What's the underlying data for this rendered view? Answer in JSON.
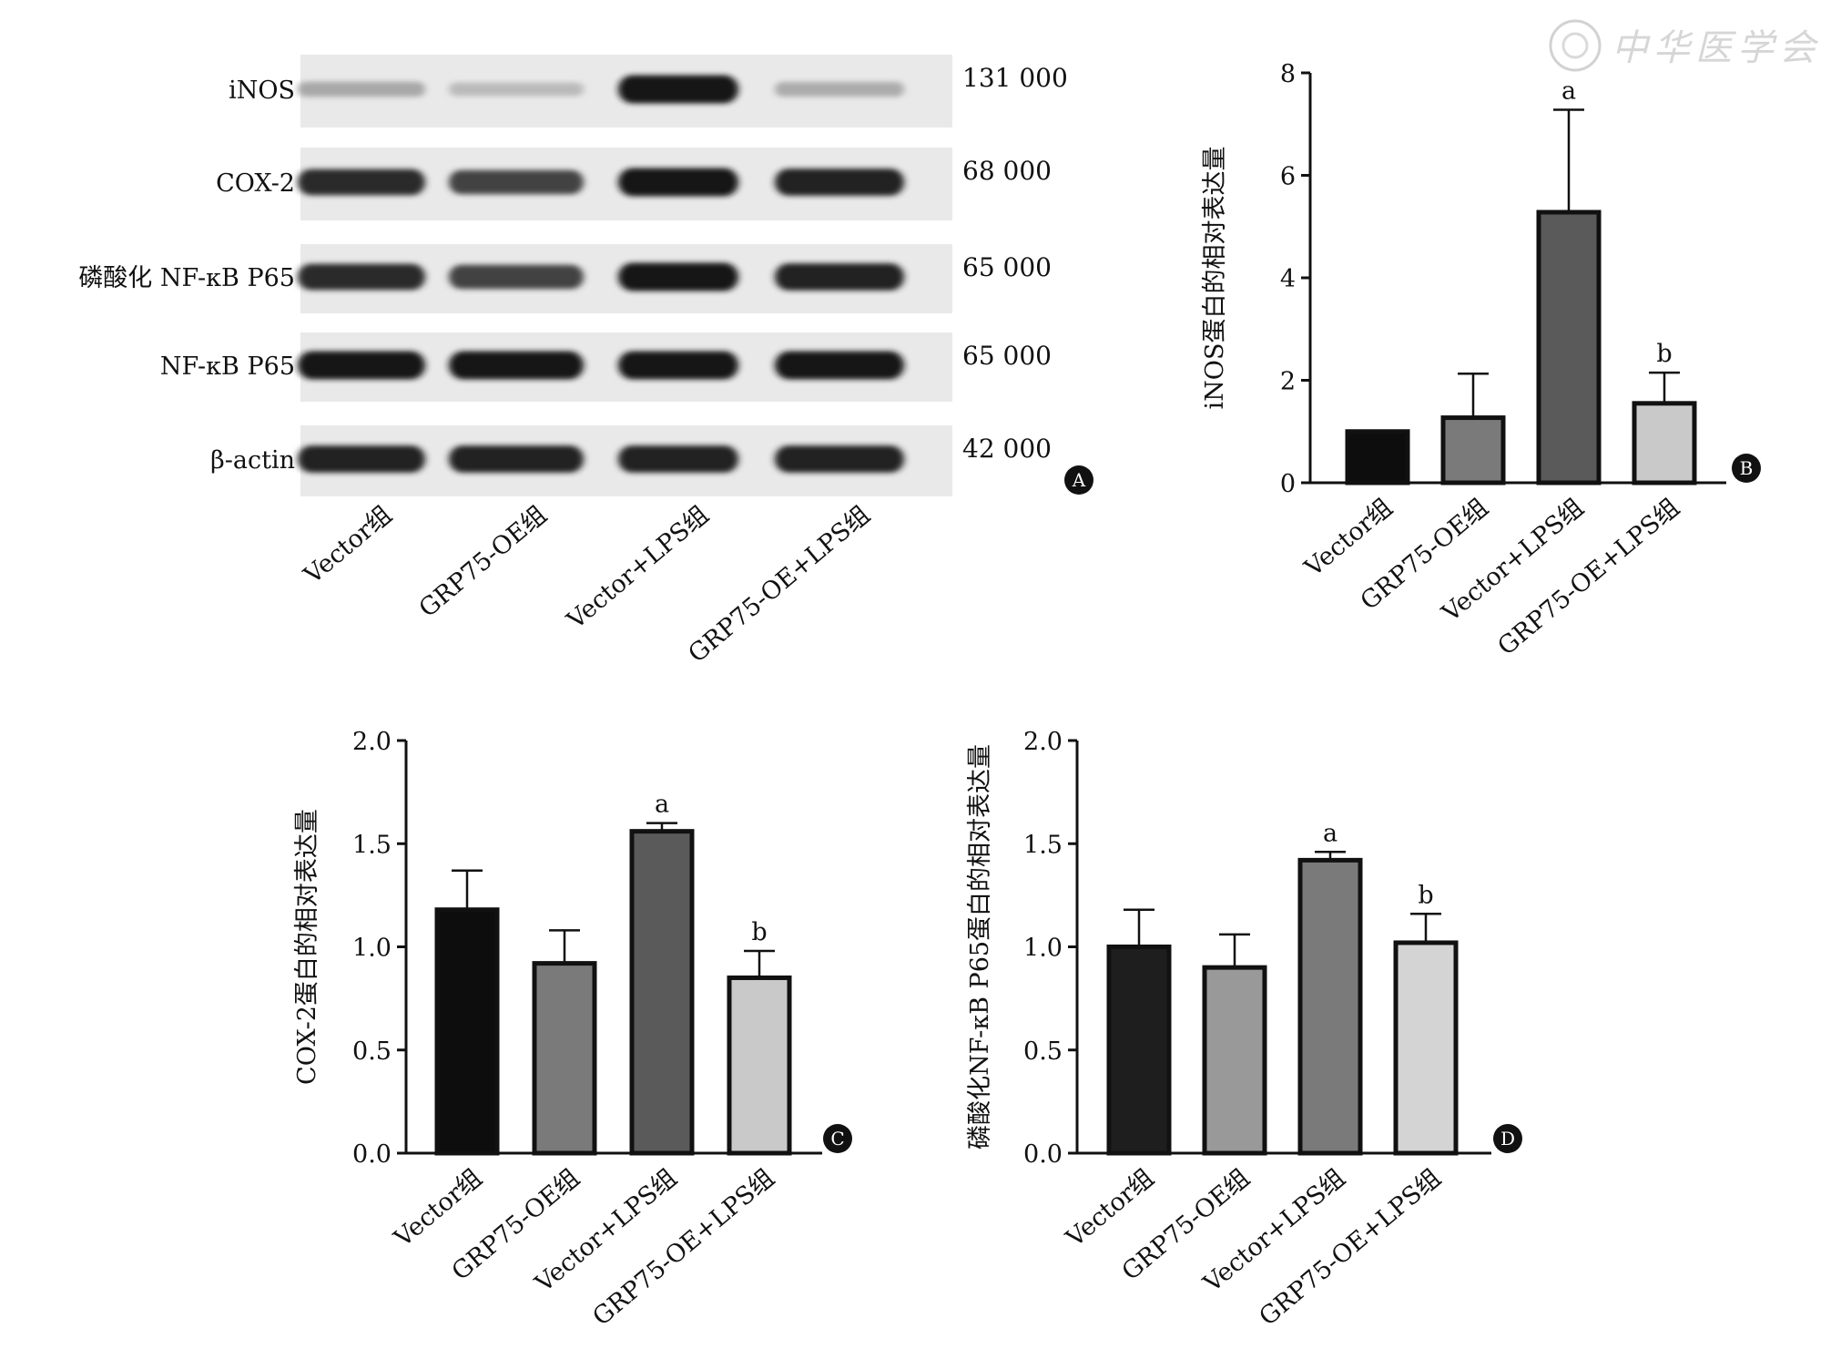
{
  "watermark": {
    "text": "中华医学会"
  },
  "panel_a": {
    "badge": "A",
    "bands": [
      {
        "label": "iNOS",
        "weight": "131 000",
        "intensities": [
          0.3,
          0.22,
          0.95,
          0.28
        ]
      },
      {
        "label": "COX-2",
        "weight": "68 000",
        "intensities": [
          0.85,
          0.75,
          0.95,
          0.9
        ]
      },
      {
        "label": "磷酸化 NF-κB P65",
        "weight": "65 000",
        "intensities": [
          0.85,
          0.75,
          0.95,
          0.9
        ]
      },
      {
        "label": "NF-κB P65",
        "weight": "65 000",
        "intensities": [
          0.95,
          0.95,
          0.95,
          0.95
        ]
      },
      {
        "label": "β-actin",
        "weight": "42 000",
        "intensities": [
          0.9,
          0.9,
          0.9,
          0.9
        ]
      }
    ],
    "lanes": [
      "Vector组",
      "GRP75-OE组",
      "Vector+LPS组",
      "GRP75-OE+LPS组"
    ]
  },
  "chart_data": [
    {
      "type": "bar",
      "badge": "B",
      "categories": [
        "Vector组",
        "GRP75-OE组",
        "Vector+LPS组",
        "GRP75-OE+LPS组"
      ],
      "values": [
        1.0,
        1.27,
        5.28,
        1.55
      ],
      "errors": [
        0,
        0.86,
        2.0,
        0.6
      ],
      "annotations": [
        "",
        "",
        "a",
        "b"
      ],
      "colors": [
        "#0d0d0d",
        "#7a7a7a",
        "#5a5a5a",
        "#c9c9c9"
      ],
      "ylabel": "iNOS蛋白的相对表达量",
      "ylim": [
        0,
        8
      ],
      "yticks": [
        "0",
        "2",
        "4",
        "6",
        "8"
      ]
    },
    {
      "type": "bar",
      "badge": "C",
      "categories": [
        "Vector组",
        "GRP75-OE组",
        "Vector+LPS组",
        "GRP75-OE+LPS组"
      ],
      "values": [
        1.18,
        0.92,
        1.56,
        0.85
      ],
      "errors": [
        0.19,
        0.16,
        0.04,
        0.13
      ],
      "annotations": [
        "",
        "",
        "a",
        "b"
      ],
      "colors": [
        "#0d0d0d",
        "#7a7a7a",
        "#5a5a5a",
        "#c9c9c9"
      ],
      "ylabel": "COX-2蛋白的相对表达量",
      "ylim": [
        0,
        2.0
      ],
      "yticks": [
        "0.0",
        "0.5",
        "1.0",
        "1.5",
        "2.0"
      ]
    },
    {
      "type": "bar",
      "badge": "D",
      "categories": [
        "Vector组",
        "GRP75-OE组",
        "Vector+LPS组",
        "GRP75-OE+LPS组"
      ],
      "values": [
        1.0,
        0.9,
        1.42,
        1.02
      ],
      "errors": [
        0.18,
        0.16,
        0.04,
        0.14
      ],
      "annotations": [
        "",
        "",
        "a",
        "b"
      ],
      "colors": [
        "#1e1e1e",
        "#999999",
        "#7a7a7a",
        "#d4d4d4"
      ],
      "ylabel": "磷酸化NF-κB P65蛋白的相对表达量",
      "ylim": [
        0,
        2.0
      ],
      "yticks": [
        "0.0",
        "0.5",
        "1.0",
        "1.5",
        "2.0"
      ]
    }
  ]
}
